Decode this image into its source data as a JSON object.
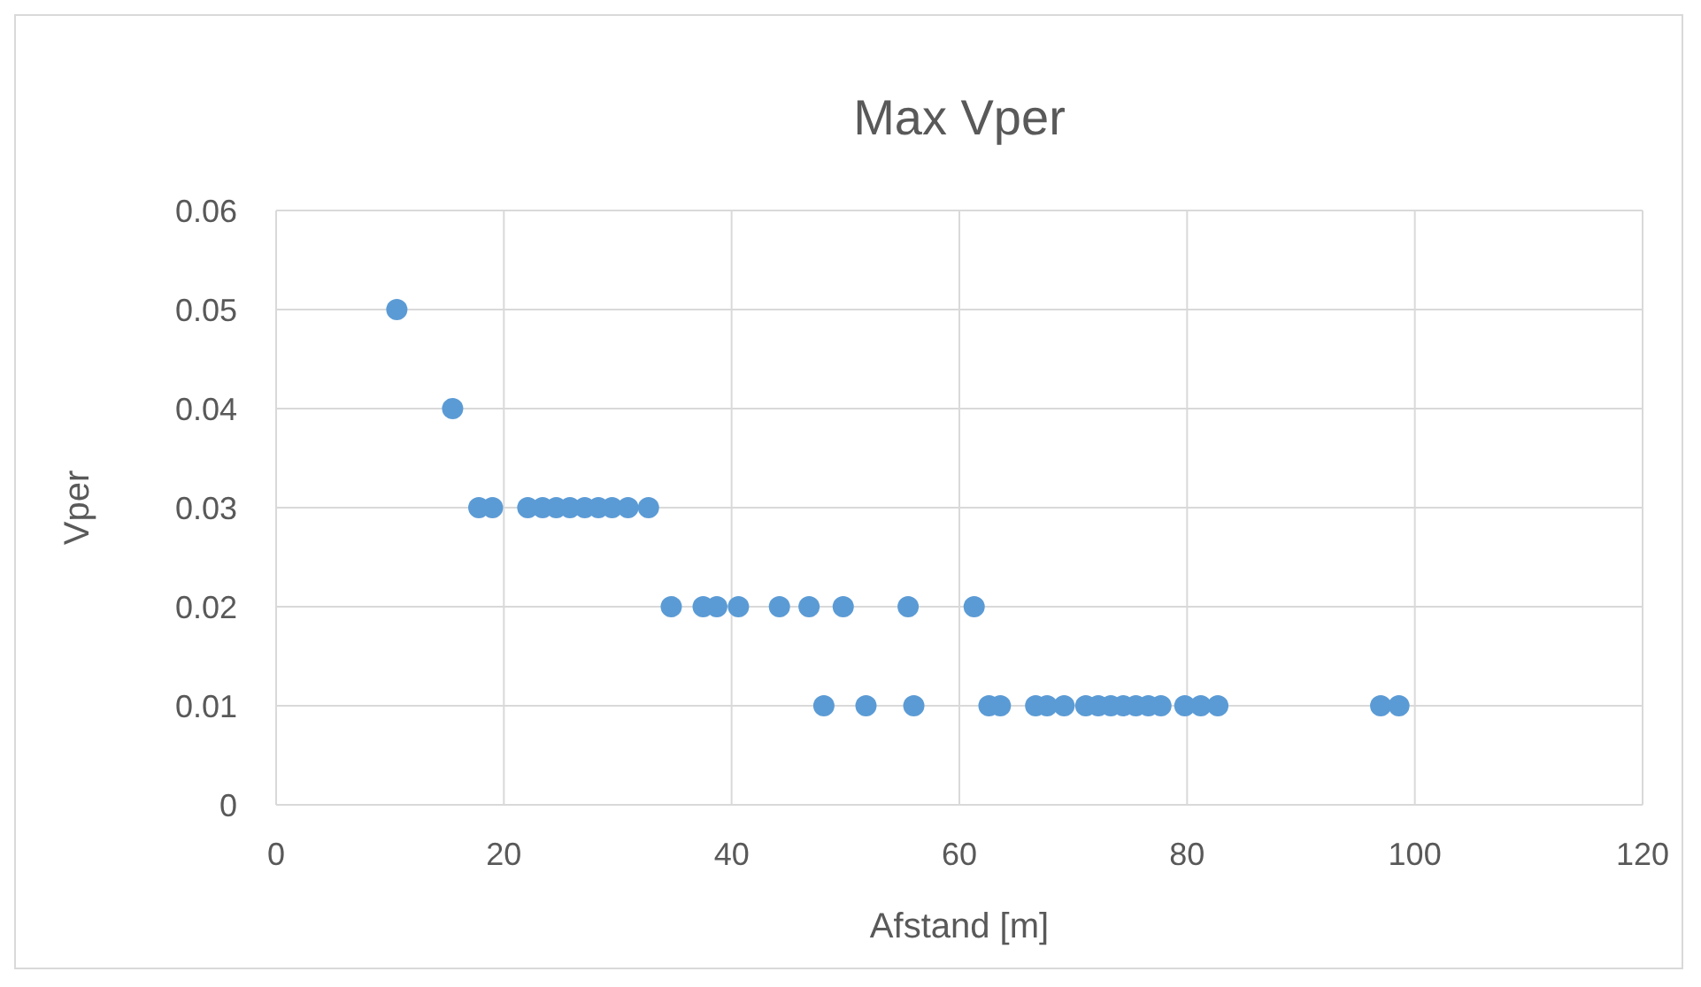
{
  "chart_data": {
    "type": "scatter",
    "title": "Max Vper",
    "xlabel": "Afstand [m]",
    "ylabel": "Vper",
    "xlim": [
      0,
      120
    ],
    "xticks": [
      0,
      20,
      40,
      60,
      80,
      100,
      120
    ],
    "ylim": [
      0,
      0.06
    ],
    "yticks": [
      {
        "value": 0,
        "label": "0"
      },
      {
        "value": 0.01,
        "label": "0.01"
      },
      {
        "value": 0.02,
        "label": "0.02"
      },
      {
        "value": 0.03,
        "label": "0.03"
      },
      {
        "value": 0.04,
        "label": "0.04"
      },
      {
        "value": 0.05,
        "label": "0.05"
      },
      {
        "value": 0.06,
        "label": "0.06"
      }
    ],
    "grid": true,
    "marker": "circle",
    "series": [
      {
        "color": "#5b9bd5",
        "x": [
          10.6,
          15.5,
          17.8,
          19.0,
          22.1,
          23.4,
          24.6,
          25.8,
          27.1,
          28.3,
          29.5,
          30.9,
          32.7,
          34.7,
          37.5,
          38.7,
          40.6,
          44.2,
          46.8,
          49.8,
          55.5,
          61.3,
          48.1,
          51.8,
          56.0,
          62.6,
          63.6,
          66.7,
          67.7,
          69.2,
          71.1,
          72.2,
          73.3,
          74.4,
          75.5,
          76.6,
          77.7,
          79.8,
          81.2,
          82.7,
          97.0,
          98.6
        ],
        "values": [
          0.05,
          0.04,
          0.03,
          0.03,
          0.03,
          0.03,
          0.03,
          0.03,
          0.03,
          0.03,
          0.03,
          0.03,
          0.03,
          0.02,
          0.02,
          0.02,
          0.02,
          0.02,
          0.02,
          0.02,
          0.02,
          0.02,
          0.01,
          0.01,
          0.01,
          0.01,
          0.01,
          0.01,
          0.01,
          0.01,
          0.01,
          0.01,
          0.01,
          0.01,
          0.01,
          0.01,
          0.01,
          0.01,
          0.01,
          0.01,
          0.01,
          0.01
        ]
      }
    ]
  }
}
